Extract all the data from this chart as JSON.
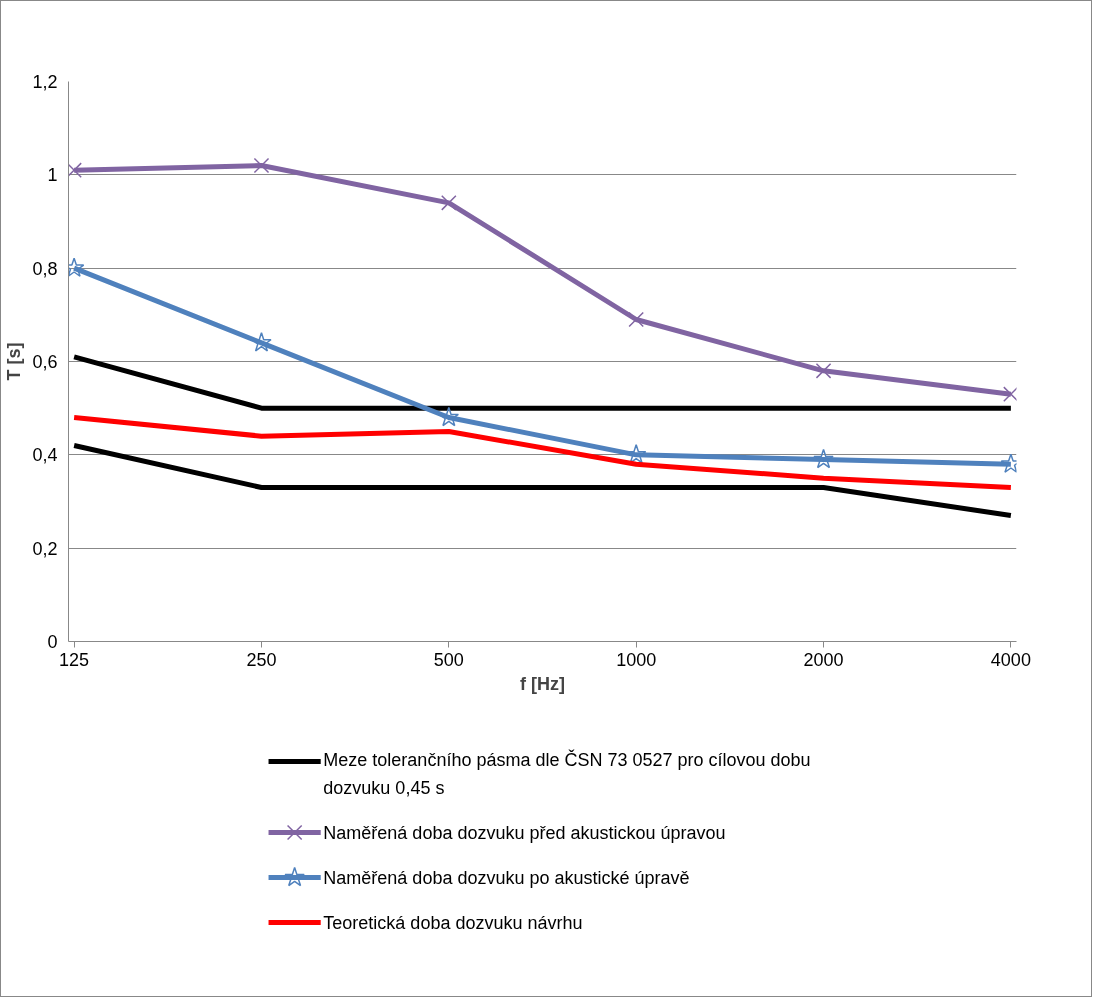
{
  "chart_data": {
    "type": "line",
    "xlabel": "f [Hz]",
    "ylabel": "T [s]",
    "categories": [
      "125",
      "250",
      "500",
      "1000",
      "2000",
      "4000"
    ],
    "ylim": [
      0,
      1.2
    ],
    "yticks": [
      0,
      {
        "value": 0.2,
        "label": "0,2"
      },
      {
        "value": 0.4,
        "label": "0,4"
      },
      {
        "value": 0.6,
        "label": "0,6"
      },
      {
        "value": 0.8,
        "label": "0,8"
      },
      1,
      {
        "value": 1.2,
        "label": "1,2"
      }
    ],
    "grid": "y",
    "legend": "bottom",
    "line_style": "solid",
    "series": [
      {
        "name": "Meze tolerančního pásma dle ČSN 73 0527 pro cílovou dobu dozvuku 0,45 s",
        "color": "#000000",
        "marker": "none",
        "values": [
          0.61,
          0.5,
          0.5,
          0.5,
          0.5,
          0.5
        ]
      },
      {
        "name": "Naměřená doba dozvuku před akustickou úpravou",
        "color": "#8064a2",
        "marker": "cross",
        "values": [
          1.01,
          1.02,
          0.94,
          0.69,
          0.58,
          0.53
        ]
      },
      {
        "name": "Naměřená doba dozvuku po akustické úpravě",
        "color": "#4f81bd",
        "marker": "star",
        "values": [
          0.8,
          0.64,
          0.48,
          0.4,
          0.39,
          0.38
        ]
      },
      {
        "name": "Teoretická doba dozvuku návrhu",
        "color": "#ff0000",
        "marker": "none",
        "values": [
          0.48,
          0.44,
          0.45,
          0.38,
          0.35,
          0.33
        ]
      },
      {
        "color": "#000000",
        "marker": "none",
        "values": [
          0.42,
          0.33,
          0.33,
          0.33,
          0.33,
          0.27
        ]
      }
    ]
  }
}
